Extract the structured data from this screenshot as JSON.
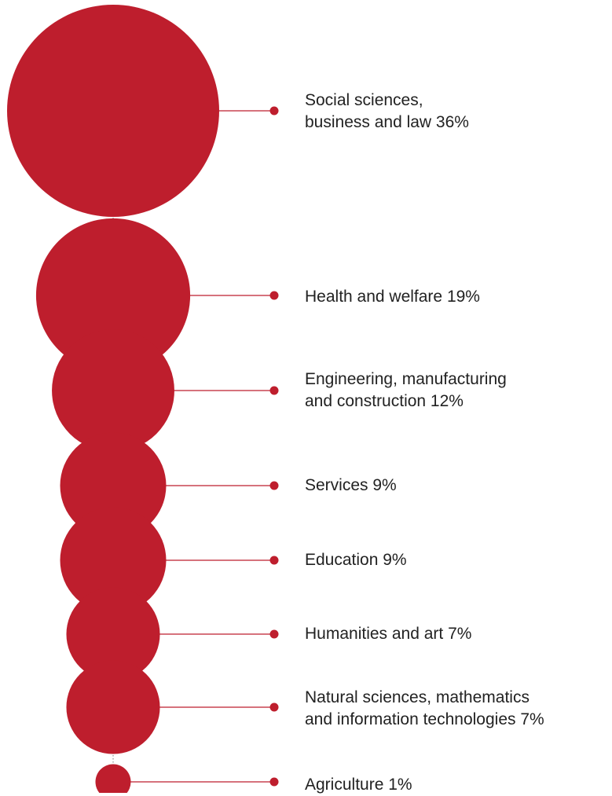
{
  "chart_data": {
    "type": "bubble",
    "color": "#BE1E2D",
    "title": "",
    "categories": [
      "Social sciences,\nbusiness and law",
      "Health and welfare",
      "Engineering, manufacturing\nand construction",
      "Services",
      "Education",
      "Humanities and art",
      "Natural sciences, mathematics\nand information technologies",
      "Agriculture"
    ],
    "values": [
      36,
      19,
      12,
      9,
      9,
      7,
      7,
      1
    ],
    "unit": "%",
    "labels": [
      "Social sciences,\nbusiness and law 36%",
      "Health and welfare 19%",
      "Engineering, manufacturing\nand construction 12%",
      "Services 9%",
      "Education 9%",
      "Humanities and art 7%",
      "Natural sciences, mathematics\nand information technologies 7%",
      "Agriculture 1%"
    ]
  }
}
